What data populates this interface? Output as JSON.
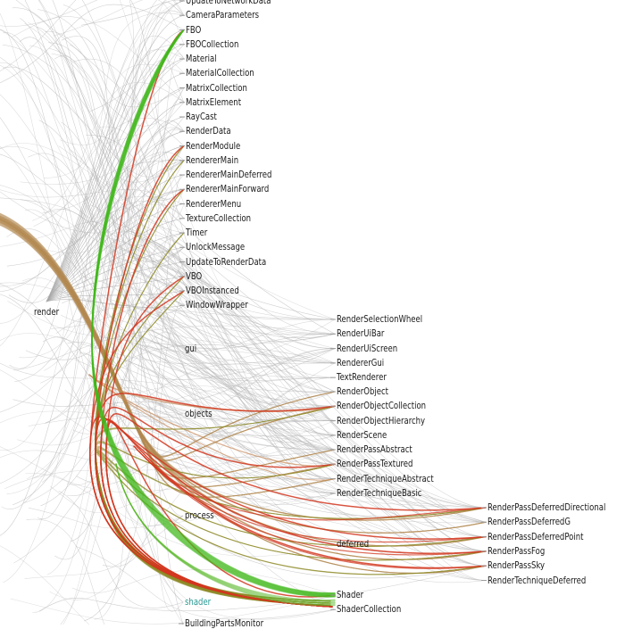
{
  "colors": {
    "background": "#ffffff",
    "green_edge": "#3fb81a",
    "red_edge": "#d2361e",
    "olive_edge": "#8e8a28",
    "tan_edge": "#b28850",
    "grey_edge": "#b7b7b7",
    "highlight_label": "#2a9a94"
  },
  "root": {
    "name": "render"
  },
  "render_children": [
    {
      "name": "UpdateToNetworkData"
    },
    {
      "name": "CameraParameters"
    },
    {
      "name": "FBO"
    },
    {
      "name": "FBOCollection"
    },
    {
      "name": "Material"
    },
    {
      "name": "MaterialCollection"
    },
    {
      "name": "MatrixCollection"
    },
    {
      "name": "MatrixElement"
    },
    {
      "name": "RayCast"
    },
    {
      "name": "RenderData"
    },
    {
      "name": "RenderModule"
    },
    {
      "name": "RendererMain"
    },
    {
      "name": "RendererMainDeferred"
    },
    {
      "name": "RendererMainForward"
    },
    {
      "name": "RendererMenu"
    },
    {
      "name": "TextureCollection"
    },
    {
      "name": "Timer"
    },
    {
      "name": "UnlockMessage"
    },
    {
      "name": "UpdateToRenderData"
    },
    {
      "name": "VBO"
    },
    {
      "name": "VBOInstanced"
    },
    {
      "name": "WindowWrapper"
    }
  ],
  "packages": [
    {
      "name": "gui",
      "children": [
        "RenderSelectionWheel",
        "RenderUiBar",
        "RenderUiScreen",
        "RendererGui",
        "TextRenderer"
      ]
    },
    {
      "name": "objects",
      "children": [
        "RenderObject",
        "RenderObjectCollection",
        "RenderObjectHierarchy",
        "RenderScene"
      ]
    },
    {
      "name": "process",
      "children": [
        "RenderPassAbstract",
        "RenderPassTextured",
        "RenderTechniqueAbstract",
        "RenderTechniqueBasic"
      ]
    },
    {
      "name": "deferred",
      "children": [
        "RenderPassDeferredDirectional",
        "RenderPassDeferredG",
        "RenderPassDeferredPoint",
        "RenderPassFog",
        "RenderPassSky",
        "RenderTechniqueDeferred"
      ]
    },
    {
      "name": "shader",
      "highlighted": true,
      "children": [
        "Shader",
        "ShaderCollection"
      ]
    }
  ],
  "footer_label": "BuildingPartsMonitor",
  "highlight_dependencies": {
    "source": "shader",
    "used_by": [
      "FBO",
      "RenderModule",
      "RendererMainForward",
      "VBO",
      "VBOInstanced",
      "RenderObjectCollection",
      "RenderPassTextured",
      "RenderPassDeferredDirectional",
      "RenderPassDeferredPoint",
      "RenderPassFog",
      "RenderPassSky",
      "Shader"
    ]
  }
}
